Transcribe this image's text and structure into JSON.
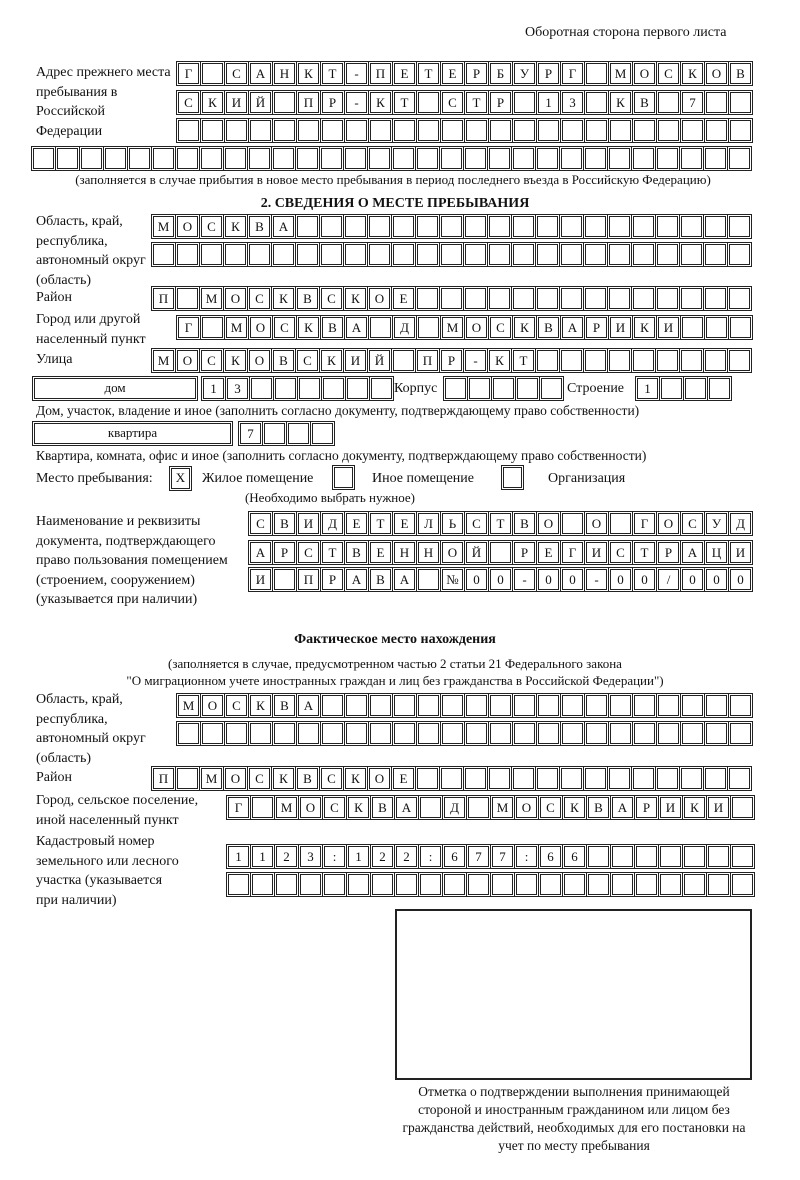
{
  "header": {
    "sheet_side": "Оборотная сторона первого листа"
  },
  "previous_address": {
    "label": "Адрес прежнего места пребывания в Российской Федерации",
    "rows": [
      [
        "Г",
        "",
        "С",
        "А",
        "Н",
        "К",
        "Т",
        "-",
        "П",
        "Е",
        "Т",
        "Е",
        "Р",
        "Б",
        "У",
        "Р",
        "Г",
        "",
        "М",
        "О",
        "С",
        "К",
        "О",
        "В"
      ],
      [
        "С",
        "К",
        "И",
        "Й",
        "",
        "П",
        "Р",
        "-",
        "К",
        "Т",
        "",
        "С",
        "Т",
        "Р",
        "",
        "1",
        "3",
        "",
        "К",
        "В",
        "",
        "7",
        "",
        ""
      ],
      [
        "",
        "",
        "",
        "",
        "",
        "",
        "",
        "",
        "",
        "",
        "",
        "",
        "",
        "",
        "",
        "",
        "",
        "",
        "",
        "",
        "",
        "",
        "",
        ""
      ],
      [
        "",
        "",
        "",
        "",
        "",
        "",
        "",
        "",
        "",
        "",
        "",
        "",
        "",
        "",
        "",
        "",
        "",
        "",
        "",
        "",
        "",
        "",
        "",
        "",
        "",
        "",
        "",
        "",
        "",
        ""
      ]
    ],
    "note": "(заполняется в случае прибытия в новое место пребывания в период последнего въезда в Российскую Федерацию)"
  },
  "section2": {
    "title": "2. СВЕДЕНИЯ О МЕСТЕ ПРЕБЫВАНИЯ",
    "region_label": "Область, край, республика, автономный округ (область)",
    "region_rows": [
      [
        "М",
        "О",
        "С",
        "К",
        "В",
        "А",
        "",
        "",
        "",
        "",
        "",
        "",
        "",
        "",
        "",
        "",
        "",
        "",
        "",
        "",
        "",
        "",
        "",
        "",
        ""
      ],
      [
        "",
        "",
        "",
        "",
        "",
        "",
        "",
        "",
        "",
        "",
        "",
        "",
        "",
        "",
        "",
        "",
        "",
        "",
        "",
        "",
        "",
        "",
        "",
        "",
        ""
      ]
    ],
    "district_label": "Район",
    "district_row": [
      "П",
      "",
      "М",
      "О",
      "С",
      "К",
      "В",
      "С",
      "К",
      "О",
      "Е",
      "",
      "",
      "",
      "",
      "",
      "",
      "",
      "",
      "",
      "",
      "",
      "",
      "",
      ""
    ],
    "city_label": "Город или другой населенный пункт",
    "city_row": [
      "Г",
      "",
      "М",
      "О",
      "С",
      "К",
      "В",
      "А",
      "",
      "Д",
      "",
      "М",
      "О",
      "С",
      "К",
      "В",
      "А",
      "Р",
      "И",
      "К",
      "И",
      "",
      "",
      ""
    ],
    "street_label": "Улица",
    "street_row": [
      "М",
      "О",
      "С",
      "К",
      "О",
      "В",
      "С",
      "К",
      "И",
      "Й",
      "",
      "П",
      "Р",
      "-",
      "К",
      "Т",
      "",
      "",
      "",
      "",
      "",
      "",
      "",
      "",
      ""
    ],
    "house_type": "дом",
    "house_row": [
      "1",
      "3",
      "",
      "",
      "",
      "",
      "",
      ""
    ],
    "building_label": "Корпус",
    "building_row": [
      "",
      "",
      "",
      "",
      ""
    ],
    "structure_label": "Строение",
    "structure_row": [
      "1",
      "",
      "",
      ""
    ],
    "house_note": "Дом, участок, владение и иное (заполнить согласно документу, подтверждающему право собственности)",
    "apartment_type": "квартира",
    "apartment_row": [
      "7",
      "",
      "",
      ""
    ],
    "apartment_note": "Квартира, комната, офис и иное (заполнить согласно документу, подтверждающему право собственности)",
    "stay_place_label": "Место пребывания:",
    "stay_options": [
      {
        "mark": "X",
        "label": "Жилое помещение"
      },
      {
        "mark": "",
        "label": "Иное помещение"
      },
      {
        "mark": "",
        "label": "Организация"
      }
    ],
    "stay_note": "(Необходимо выбрать нужное)",
    "document_label": "Наименование и реквизиты документа, подтверждающего право пользования помещением (строением, сооружением) (указывается при наличии)",
    "document_rows": [
      [
        "С",
        "В",
        "И",
        "Д",
        "Е",
        "Т",
        "Е",
        "Л",
        "Ь",
        "С",
        "Т",
        "В",
        "О",
        "",
        "О",
        "",
        "Г",
        "О",
        "С",
        "У",
        "Д"
      ],
      [
        "А",
        "Р",
        "С",
        "Т",
        "В",
        "Е",
        "Н",
        "Н",
        "О",
        "Й",
        "",
        "Р",
        "Е",
        "Г",
        "И",
        "С",
        "Т",
        "Р",
        "А",
        "Ц",
        "И"
      ],
      [
        "И",
        "",
        "П",
        "Р",
        "А",
        "В",
        "А",
        "",
        "№",
        "0",
        "0",
        "-",
        "0",
        "0",
        "-",
        "0",
        "0",
        "/",
        "0",
        "0",
        "0"
      ]
    ]
  },
  "actual_location": {
    "title": "Фактическое место нахождения",
    "note_line1": "(заполняется в случае, предусмотренном частью 2 статьи 21 Федерального закона",
    "note_line2": "\"О миграционном учете иностранных граждан и лиц без гражданства в Российской Федерации\")",
    "region_label": "Область, край, республика, автономный округ (область)",
    "region_rows": [
      [
        "М",
        "О",
        "С",
        "К",
        "В",
        "А",
        "",
        "",
        "",
        "",
        "",
        "",
        "",
        "",
        "",
        "",
        "",
        "",
        "",
        "",
        "",
        "",
        "",
        ""
      ],
      [
        "",
        "",
        "",
        "",
        "",
        "",
        "",
        "",
        "",
        "",
        "",
        "",
        "",
        "",
        "",
        "",
        "",
        "",
        "",
        "",
        "",
        "",
        "",
        ""
      ]
    ],
    "district_label": "Район",
    "district_row": [
      "П",
      "",
      "М",
      "О",
      "С",
      "К",
      "В",
      "С",
      "К",
      "О",
      "Е",
      "",
      "",
      "",
      "",
      "",
      "",
      "",
      "",
      "",
      "",
      "",
      "",
      "",
      ""
    ],
    "city_label": "Город, сельское поселение, иной населенный пункт",
    "city_row": [
      "Г",
      "",
      "М",
      "О",
      "С",
      "К",
      "В",
      "А",
      "",
      "Д",
      "",
      "М",
      "О",
      "С",
      "К",
      "В",
      "А",
      "Р",
      "И",
      "К",
      "И",
      ""
    ],
    "cadastral_label": "Кадастровый номер земельного или лесного участка (указывается при наличии)",
    "cadastral_rows": [
      [
        "1",
        "1",
        "2",
        "3",
        ":",
        "1",
        "2",
        "2",
        ":",
        "6",
        "7",
        "7",
        ":",
        "6",
        "6",
        "",
        "",
        "",
        "",
        "",
        "",
        ""
      ],
      [
        "",
        "",
        "",
        "",
        "",
        "",
        "",
        "",
        "",
        "",
        "",
        "",
        "",
        "",
        "",
        "",
        "",
        "",
        "",
        "",
        "",
        ""
      ]
    ]
  },
  "confirmation_caption": "Отметка о подтверждении выполнения принимающей стороной и иностранным гражданином или лицом без гражданства действий, необходимых для его постановки на учет по месту пребывания"
}
